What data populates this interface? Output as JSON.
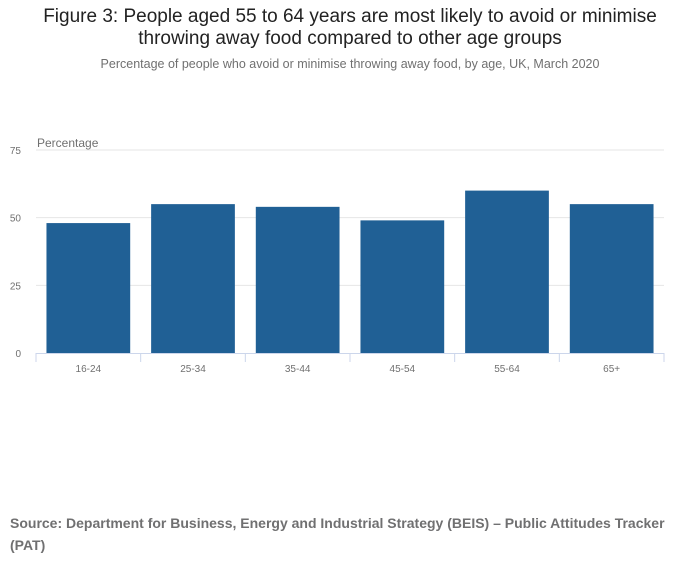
{
  "title": "Figure 3: People aged 55 to 64 years are most likely to avoid or minimise throwing away food compared to other age groups",
  "subtitle": "Percentage of people who avoid or minimise throwing away food, by age, UK, March 2020",
  "source": "Source: Department for Business, Energy and Industrial Strategy (BEIS) – Public Attitudes Tracker (PAT)",
  "colors": {
    "bar": "#206095",
    "grid": "#e6e6e6",
    "axis": "#ccd6eb",
    "label": "#707070"
  },
  "chart_data": {
    "type": "bar",
    "ylabel": "Percentage",
    "xlabel": "",
    "categories": [
      "16-24",
      "25-34",
      "35-44",
      "45-54",
      "55-64",
      "65+"
    ],
    "values": [
      48,
      55,
      54,
      49,
      60,
      55
    ],
    "ylim": [
      0,
      75
    ],
    "yticks": [
      0,
      25,
      50,
      75
    ],
    "grid": true,
    "legend": "none"
  }
}
